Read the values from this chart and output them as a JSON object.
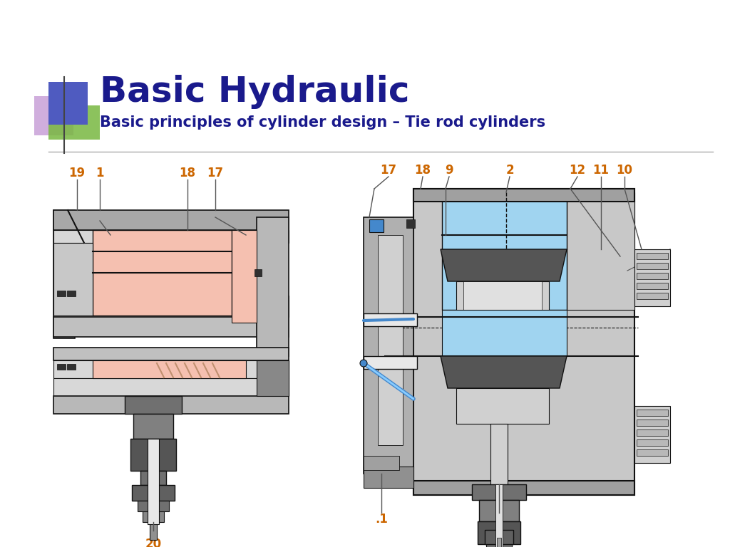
{
  "title": "Basic Hydraulic",
  "subtitle": "Basic principles of cylinder design – Tie rod cylinders",
  "title_color": "#1a1a8c",
  "subtitle_color": "#1a1a8c",
  "title_fontsize": 36,
  "subtitle_fontsize": 15,
  "bg_color": "#ffffff",
  "label_color": "#cc6600",
  "label_fontsize": 12,
  "lc": "#555555",
  "salmon": "#f5c0b0",
  "grey_light": "#d8d8d8",
  "grey_mid": "#b8b8b8",
  "grey_dark": "#888888",
  "grey_darker": "#606060",
  "black": "#111111",
  "blue_fluid": "#a0d4f0",
  "blue_accent": "#4488cc",
  "blue_sq": "#4f5bc0",
  "purple_sq": "#c8a0d8",
  "green_sq": "#78b840"
}
